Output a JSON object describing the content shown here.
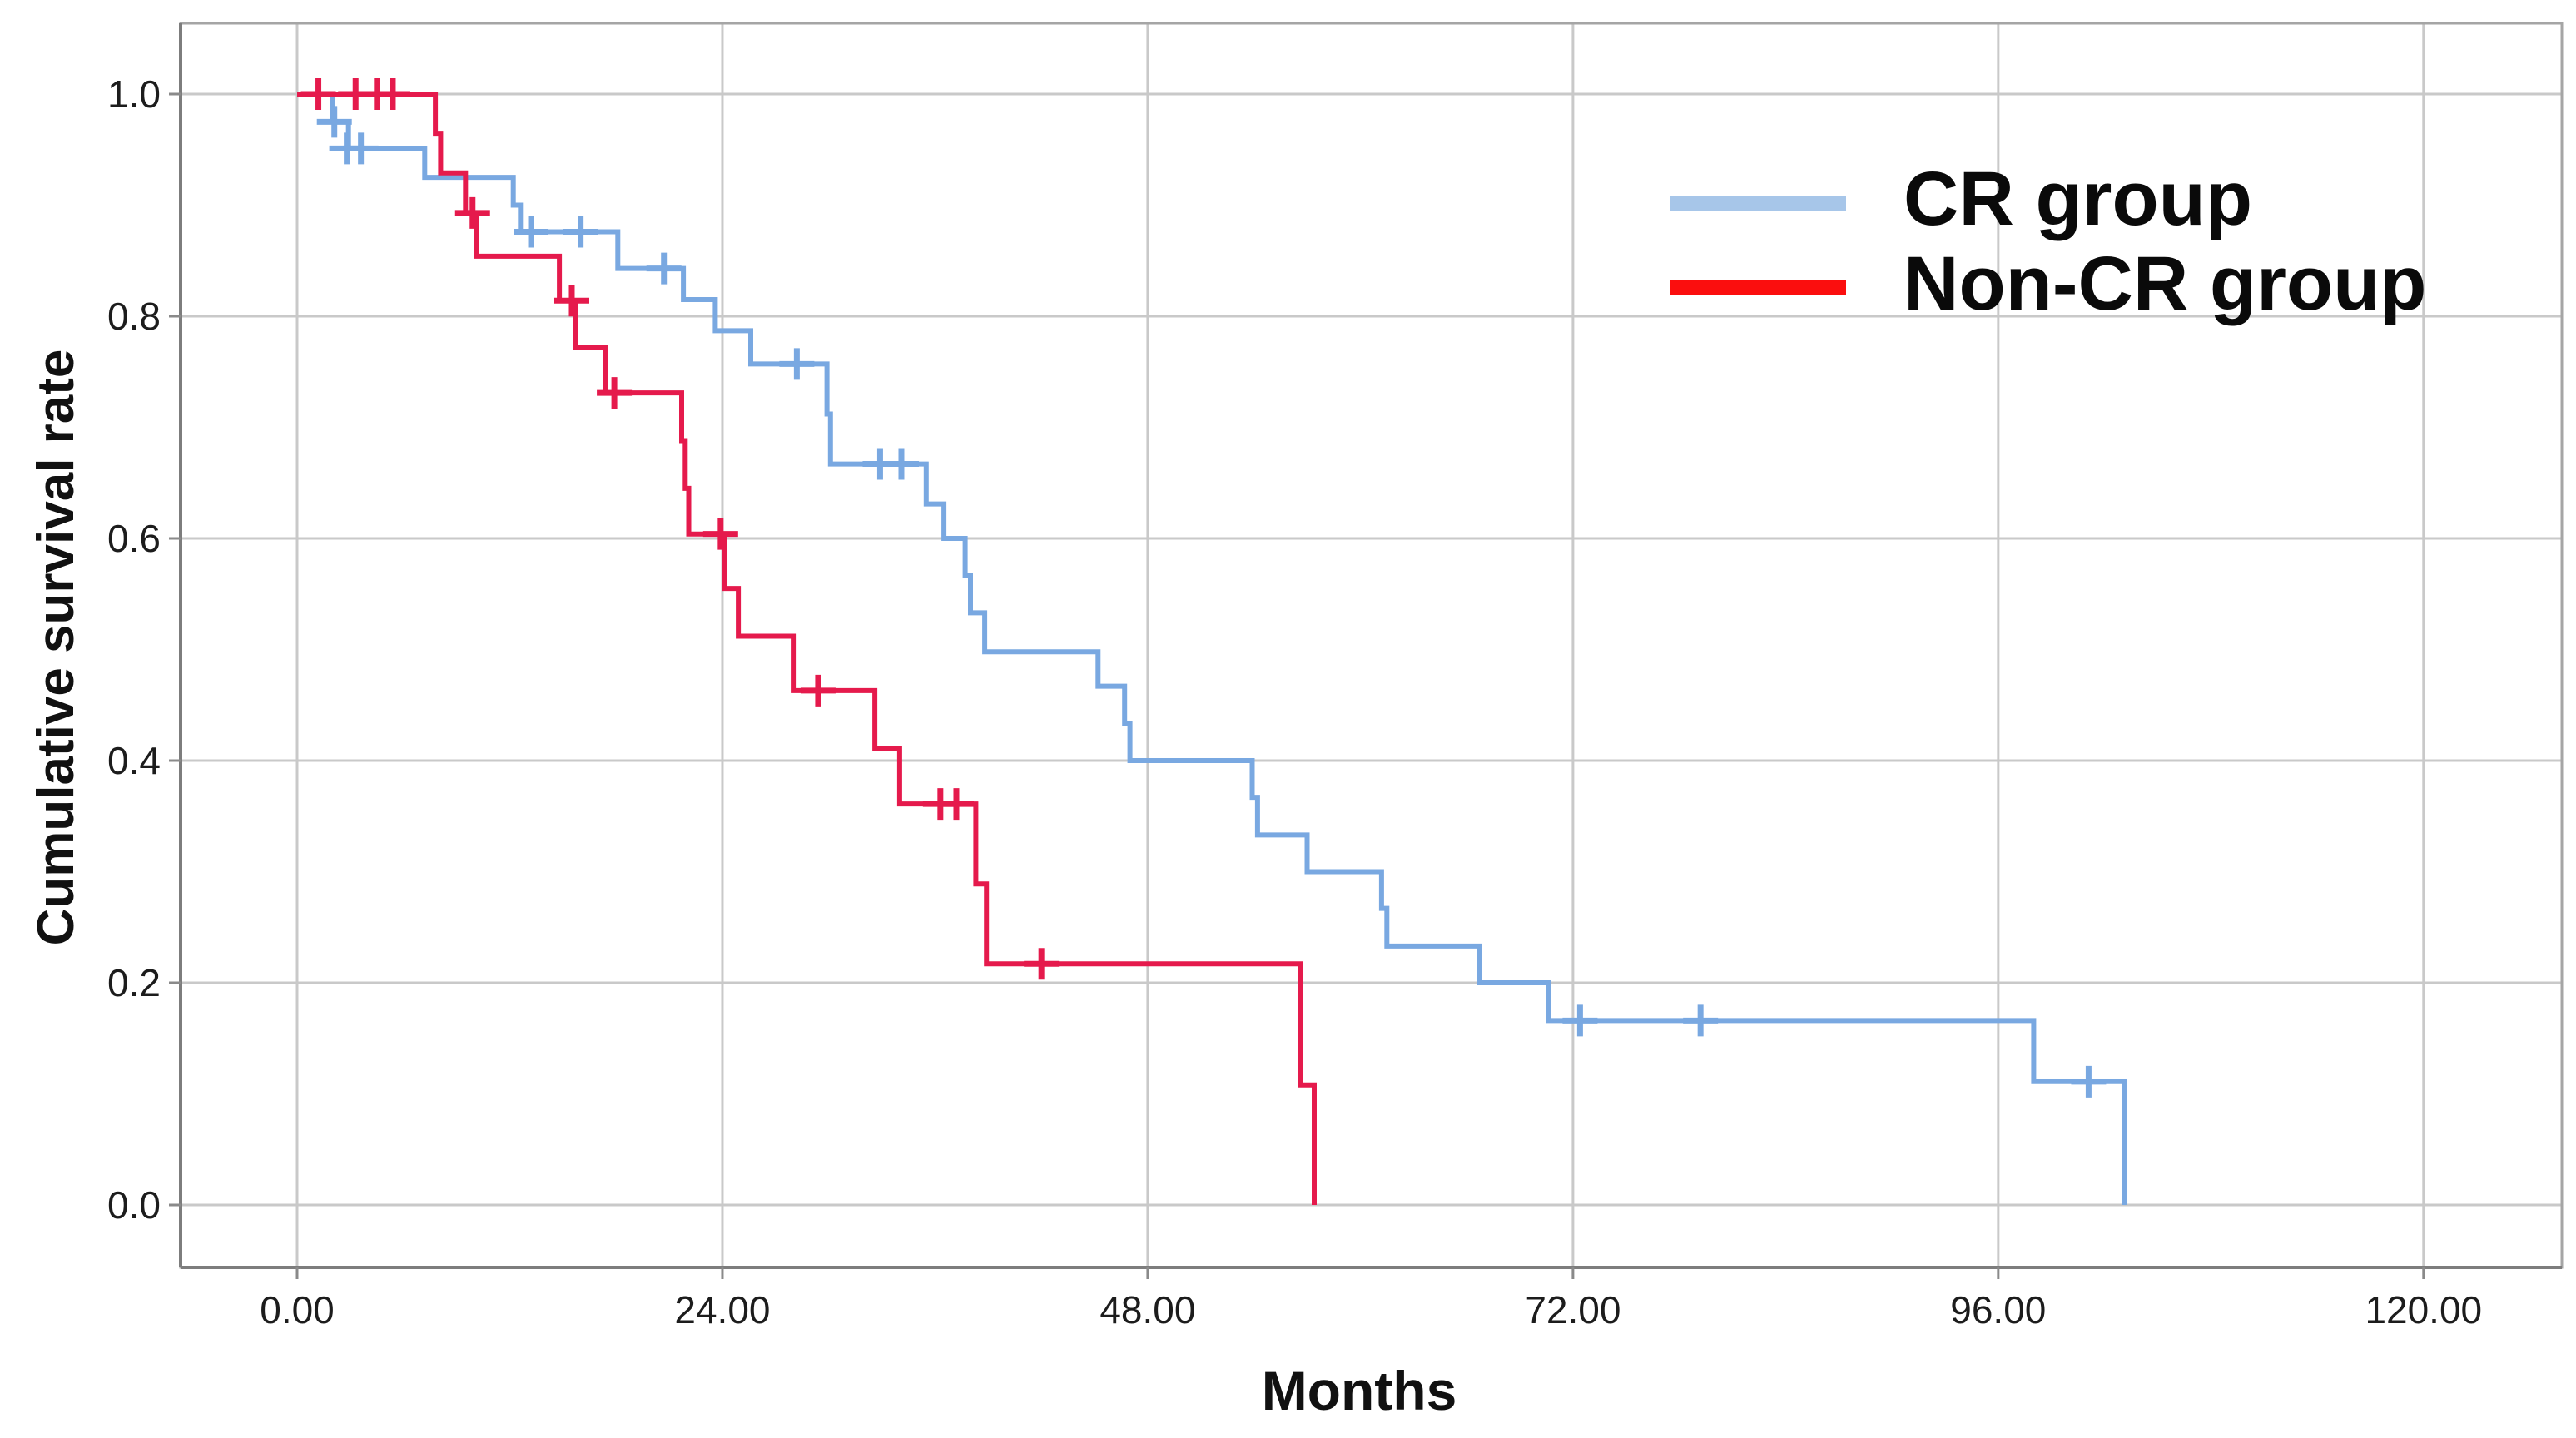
{
  "chart_data": {
    "type": "line",
    "subtype": "kaplan-meier-step-curves",
    "title": "",
    "xlabel": "Months",
    "ylabel": "Cumulative survival rate",
    "xlim": [
      0,
      132
    ],
    "ylim": [
      0,
      1.05
    ],
    "grid": true,
    "legend_position": "upper-right-inside",
    "x_ticks": {
      "values": [
        0,
        24,
        48,
        72,
        96,
        120
      ],
      "labels": [
        "0.00",
        "24.00",
        "48.00",
        "72.00",
        "96.00",
        "120.00"
      ]
    },
    "y_ticks": {
      "values": [
        1.0,
        0.8,
        0.6,
        0.4,
        0.2,
        0.0
      ],
      "labels": [
        "1.0",
        "0.8",
        "0.6",
        "0.4",
        "0.2",
        "0.0"
      ]
    },
    "series": [
      {
        "name": "CR group",
        "color": "#79a8e1",
        "legend_color": "#a7c6e9",
        "start_value": 1.0,
        "steps": [
          [
            2.0,
            0.975
          ],
          [
            2.9,
            0.951
          ],
          [
            7.2,
            0.925
          ],
          [
            12.2,
            0.9
          ],
          [
            12.6,
            0.876
          ],
          [
            18.1,
            0.843
          ],
          [
            21.8,
            0.815
          ],
          [
            23.6,
            0.787
          ],
          [
            25.6,
            0.757
          ],
          [
            29.9,
            0.712
          ],
          [
            30.1,
            0.667
          ],
          [
            35.5,
            0.631
          ],
          [
            36.5,
            0.6
          ],
          [
            37.7,
            0.567
          ],
          [
            38.0,
            0.533
          ],
          [
            38.8,
            0.498
          ],
          [
            45.2,
            0.467
          ],
          [
            46.7,
            0.433
          ],
          [
            47.0,
            0.4
          ],
          [
            53.9,
            0.367
          ],
          [
            54.2,
            0.333
          ],
          [
            57.0,
            0.3
          ],
          [
            61.2,
            0.267
          ],
          [
            61.5,
            0.233
          ],
          [
            66.7,
            0.2
          ],
          [
            70.6,
            0.166
          ],
          [
            98.0,
            0.111
          ],
          [
            103.1,
            0.0
          ]
        ],
        "censor_marks": [
          [
            2.1,
            0.975
          ],
          [
            2.8,
            0.951
          ],
          [
            3.6,
            0.951
          ],
          [
            13.2,
            0.876
          ],
          [
            16.0,
            0.876
          ],
          [
            20.7,
            0.843
          ],
          [
            28.2,
            0.757
          ],
          [
            32.9,
            0.667
          ],
          [
            34.1,
            0.667
          ],
          [
            72.4,
            0.166
          ],
          [
            79.2,
            0.166
          ],
          [
            101.1,
            0.111
          ]
        ]
      },
      {
        "name": "Non-CR group",
        "color": "#e51a4c",
        "legend_color": "#fb0e0e",
        "start_value": 1.0,
        "steps": [
          [
            7.8,
            0.964
          ],
          [
            8.1,
            0.929
          ],
          [
            9.5,
            0.893
          ],
          [
            10.1,
            0.854
          ],
          [
            14.8,
            0.814
          ],
          [
            15.7,
            0.772
          ],
          [
            17.4,
            0.731
          ],
          [
            21.7,
            0.688
          ],
          [
            21.9,
            0.645
          ],
          [
            22.1,
            0.604
          ],
          [
            24.1,
            0.555
          ],
          [
            24.9,
            0.512
          ],
          [
            28.0,
            0.463
          ],
          [
            32.6,
            0.411
          ],
          [
            34.0,
            0.361
          ],
          [
            38.3,
            0.289
          ],
          [
            38.9,
            0.217
          ],
          [
            56.6,
            0.108
          ],
          [
            57.4,
            0.0
          ]
        ],
        "censor_marks": [
          [
            1.2,
            1.0
          ],
          [
            3.3,
            1.0
          ],
          [
            4.5,
            1.0
          ],
          [
            5.4,
            1.0
          ],
          [
            9.9,
            0.893
          ],
          [
            15.5,
            0.814
          ],
          [
            17.9,
            0.731
          ],
          [
            23.9,
            0.604
          ],
          [
            29.4,
            0.463
          ],
          [
            36.3,
            0.361
          ],
          [
            37.2,
            0.361
          ],
          [
            42.0,
            0.217
          ]
        ]
      }
    ]
  }
}
